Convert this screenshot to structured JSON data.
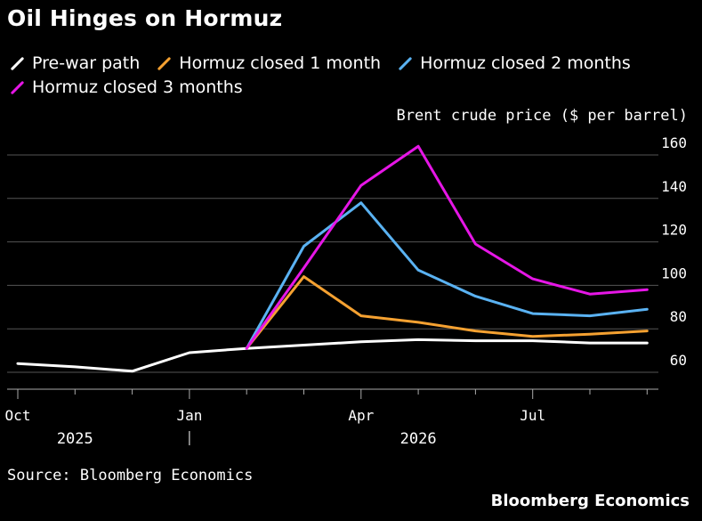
{
  "title": "Oil Hinges on Hormuz",
  "source": "Source: Bloomberg Economics",
  "brand": "Bloomberg Economics",
  "legend": [
    {
      "name": "Pre-war path",
      "color": "#ffffff"
    },
    {
      "name": "Hormuz closed 1 month",
      "color": "#f5a131"
    },
    {
      "name": "Hormuz closed 2 months",
      "color": "#5ab2f2"
    },
    {
      "name": "Hormuz closed 3 months",
      "color": "#e616e6"
    }
  ],
  "chart_data": {
    "type": "line",
    "ylabel": "Brent crude price ($ per barrel)",
    "ylim": [
      60,
      160
    ],
    "yticks": [
      60,
      80,
      100,
      120,
      140,
      160
    ],
    "y_axis_side": "right",
    "grid": "horizontal",
    "legend_position": "top",
    "x_ticks": [
      {
        "label": "Oct",
        "date": "2025-10"
      },
      {
        "label": "Jan",
        "date": "2026-01"
      },
      {
        "label": "Apr",
        "date": "2026-04"
      },
      {
        "label": "Jul",
        "date": "2026-07"
      }
    ],
    "x_years": [
      {
        "label": "2025",
        "date": "2025-11"
      },
      {
        "label": "2026",
        "date": "2026-05"
      }
    ],
    "x_range": [
      "2025-10",
      "2026-09"
    ],
    "series": [
      {
        "name": "Pre-war path",
        "color": "#ffffff",
        "points": [
          {
            "x": "2025-10",
            "y": 64
          },
          {
            "x": "2025-11",
            "y": 62.5
          },
          {
            "x": "2025-12",
            "y": 60.5
          },
          {
            "x": "2026-01",
            "y": 69
          },
          {
            "x": "2026-02",
            "y": 71
          },
          {
            "x": "2026-03",
            "y": 72.5
          },
          {
            "x": "2026-04",
            "y": 74
          },
          {
            "x": "2026-05",
            "y": 75
          },
          {
            "x": "2026-06",
            "y": 74.5
          },
          {
            "x": "2026-07",
            "y": 74.5
          },
          {
            "x": "2026-08",
            "y": 73.5
          },
          {
            "x": "2026-09",
            "y": 73.5
          }
        ]
      },
      {
        "name": "Hormuz closed 1 month",
        "color": "#f5a131",
        "points": [
          {
            "x": "2026-02",
            "y": 71
          },
          {
            "x": "2026-03",
            "y": 104
          },
          {
            "x": "2026-04",
            "y": 86
          },
          {
            "x": "2026-05",
            "y": 83
          },
          {
            "x": "2026-06",
            "y": 79
          },
          {
            "x": "2026-07",
            "y": 76.5
          },
          {
            "x": "2026-08",
            "y": 77.5
          },
          {
            "x": "2026-09",
            "y": 79
          }
        ]
      },
      {
        "name": "Hormuz closed 2 months",
        "color": "#5ab2f2",
        "points": [
          {
            "x": "2026-02",
            "y": 71
          },
          {
            "x": "2026-03",
            "y": 118
          },
          {
            "x": "2026-04",
            "y": 138
          },
          {
            "x": "2026-05",
            "y": 107
          },
          {
            "x": "2026-06",
            "y": 95
          },
          {
            "x": "2026-07",
            "y": 87
          },
          {
            "x": "2026-08",
            "y": 86
          },
          {
            "x": "2026-09",
            "y": 89
          }
        ]
      },
      {
        "name": "Hormuz closed 3 months",
        "color": "#e616e6",
        "points": [
          {
            "x": "2026-02",
            "y": 71
          },
          {
            "x": "2026-03",
            "y": 108
          },
          {
            "x": "2026-04",
            "y": 146
          },
          {
            "x": "2026-05",
            "y": 164
          },
          {
            "x": "2026-06",
            "y": 119
          },
          {
            "x": "2026-07",
            "y": 103
          },
          {
            "x": "2026-08",
            "y": 96
          },
          {
            "x": "2026-09",
            "y": 98
          }
        ]
      }
    ]
  }
}
